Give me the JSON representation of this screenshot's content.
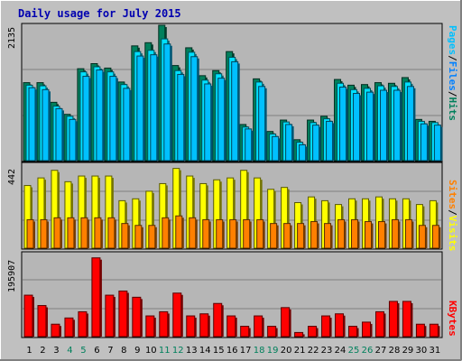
{
  "title": "Daily usage for July 2015",
  "colors": {
    "hits": "#00805c",
    "files": "#00e0ff",
    "pages": "#00c0ff",
    "visits": "#ffff00",
    "sites": "#ff8000",
    "kbytes": "#ff0000",
    "weekend_day": "#00805c",
    "weekday": "#000000"
  },
  "chart_data": [
    {
      "type": "bar",
      "name": "pages-files-hits",
      "legend": [
        "Pages",
        "/",
        "Files",
        "/",
        "Hits"
      ],
      "ymax_label": "2135",
      "ylim": [
        0,
        2135
      ],
      "categories": [
        "1",
        "2",
        "3",
        "4",
        "5",
        "6",
        "7",
        "8",
        "9",
        "10",
        "11",
        "12",
        "13",
        "14",
        "15",
        "16",
        "17",
        "18",
        "19",
        "20",
        "21",
        "22",
        "23",
        "24",
        "25",
        "26",
        "27",
        "28",
        "29",
        "30",
        "31"
      ],
      "weekend": [
        "4",
        "5",
        "11",
        "12",
        "18",
        "19",
        "25",
        "26"
      ],
      "series": [
        {
          "name": "Hits",
          "values": [
            1230,
            1230,
            920,
            730,
            1450,
            1530,
            1460,
            1240,
            1810,
            1860,
            2135,
            1500,
            1780,
            1340,
            1420,
            1720,
            570,
            1290,
            460,
            640,
            330,
            640,
            700,
            1280,
            1190,
            1200,
            1230,
            1220,
            1310,
            650,
            620
          ]
        },
        {
          "name": "Files",
          "values": [
            1190,
            1180,
            860,
            700,
            1400,
            1480,
            1400,
            1200,
            1720,
            1740,
            1920,
            1420,
            1710,
            1270,
            1370,
            1630,
            530,
            1240,
            420,
            610,
            290,
            600,
            660,
            1220,
            1120,
            1140,
            1180,
            1170,
            1240,
            620,
            600
          ]
        },
        {
          "name": "Pages",
          "values": [
            1150,
            1120,
            820,
            650,
            1330,
            1430,
            1330,
            1140,
            1650,
            1670,
            1840,
            1360,
            1640,
            1210,
            1300,
            1560,
            500,
            1170,
            380,
            570,
            250,
            560,
            620,
            1160,
            1060,
            1080,
            1110,
            1110,
            1170,
            580,
            560
          ]
        }
      ]
    },
    {
      "type": "bar",
      "name": "sites-visits",
      "legend": [
        "Sites",
        "/",
        "Visits"
      ],
      "ymax_label": "442",
      "ylim": [
        0,
        442
      ],
      "series": [
        {
          "name": "Visits",
          "values": [
            330,
            370,
            410,
            350,
            380,
            380,
            380,
            250,
            260,
            300,
            340,
            420,
            380,
            340,
            360,
            370,
            410,
            370,
            310,
            320,
            240,
            270,
            250,
            230,
            260,
            260,
            270,
            260,
            260,
            230,
            250
          ]
        },
        {
          "name": "Sites",
          "values": [
            150,
            150,
            160,
            160,
            160,
            160,
            160,
            130,
            120,
            120,
            160,
            170,
            160,
            150,
            150,
            150,
            150,
            150,
            130,
            130,
            130,
            140,
            130,
            150,
            150,
            140,
            140,
            150,
            150,
            120,
            120
          ]
        }
      ]
    },
    {
      "type": "bar",
      "name": "kbytes",
      "legend": [
        "KBytes"
      ],
      "ymax_label": "195907",
      "ylim": [
        0,
        195907
      ],
      "series": [
        {
          "name": "KBytes",
          "values": [
            100000,
            75000,
            30000,
            45000,
            60000,
            190000,
            100000,
            110000,
            95000,
            50000,
            60000,
            105000,
            50000,
            55000,
            80000,
            50000,
            25000,
            50000,
            25000,
            70000,
            10000,
            25000,
            50000,
            55000,
            25000,
            35000,
            60000,
            85000,
            85000,
            30000,
            30000
          ]
        }
      ]
    }
  ]
}
